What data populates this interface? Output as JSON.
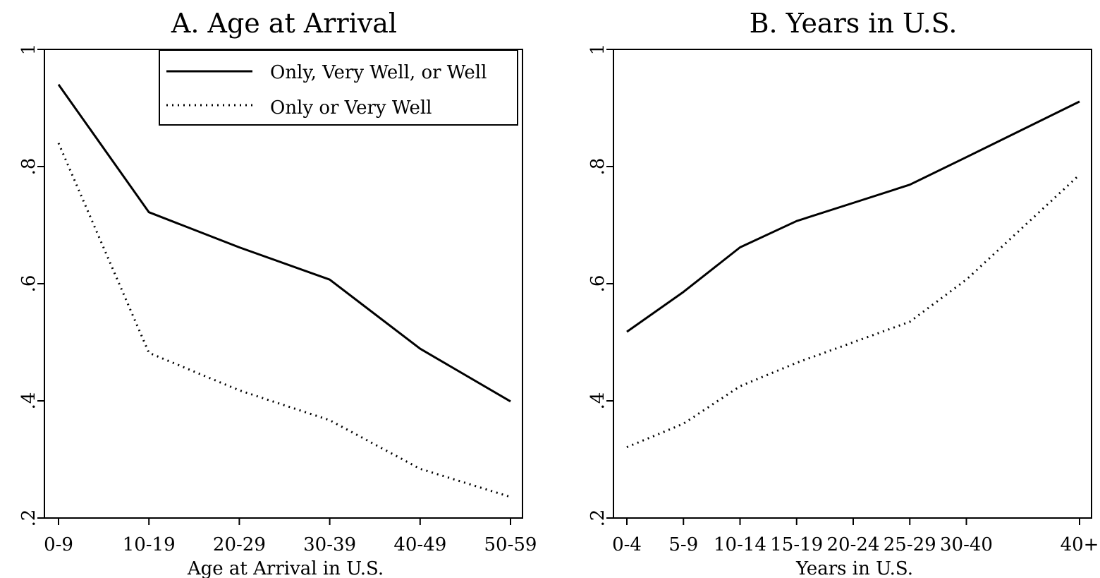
{
  "chart_data": [
    {
      "type": "line",
      "title": "A. Age at Arrival",
      "xlabel": "Age at Arrival in U.S.",
      "ylabel": "",
      "categories": [
        "0-9",
        "10-19",
        "20-29",
        "30-39",
        "40-49",
        "50-59"
      ],
      "x": [
        0,
        1,
        2,
        3,
        4,
        5
      ],
      "xlim": [
        -0.05,
        5.05
      ],
      "ylim": [
        0.2,
        1.0
      ],
      "yticks": [
        0.2,
        0.4,
        0.6,
        0.8,
        1.0
      ],
      "ytick_labels": [
        ".2",
        ".4",
        ".6",
        ".8",
        "1"
      ],
      "grid": false,
      "legend": {
        "placement": "top-right",
        "entries": [
          "Only, Very Well, or Well",
          "Only or Very Well"
        ]
      },
      "series": [
        {
          "name": "Only, Very Well, or Well",
          "style": "solid",
          "values": [
            0.94,
            0.722,
            0.662,
            0.607,
            0.489,
            0.399
          ]
        },
        {
          "name": "Only or Very Well",
          "style": "dotted",
          "values": [
            0.84,
            0.482,
            0.418,
            0.367,
            0.284,
            0.236
          ]
        }
      ]
    },
    {
      "type": "line",
      "title": "B. Years in U.S.",
      "xlabel": "Years in U.S.",
      "ylabel": "",
      "categories": [
        "0-4",
        "5-9",
        "10-14",
        "15-19",
        "20-24",
        "25-29",
        "30-40",
        "40+"
      ],
      "x": [
        0,
        1,
        2,
        3,
        4,
        5,
        6,
        8
      ],
      "xlim": [
        -0.1,
        8.1
      ],
      "ylim": [
        0.2,
        1.0
      ],
      "yticks": [
        0.2,
        0.4,
        0.6,
        0.8,
        1.0
      ],
      "ytick_labels": [
        ".2",
        ".4",
        ".6",
        ".8",
        "1"
      ],
      "grid": false,
      "series": [
        {
          "name": "Only, Very Well, or Well",
          "style": "solid",
          "values": [
            0.518,
            0.586,
            0.662,
            0.707,
            0.738,
            0.769,
            0.816,
            0.911
          ]
        },
        {
          "name": "Only or Very Well",
          "style": "dotted",
          "values": [
            0.321,
            0.361,
            0.425,
            0.465,
            0.5,
            0.535,
            0.607,
            0.786
          ]
        }
      ]
    }
  ]
}
